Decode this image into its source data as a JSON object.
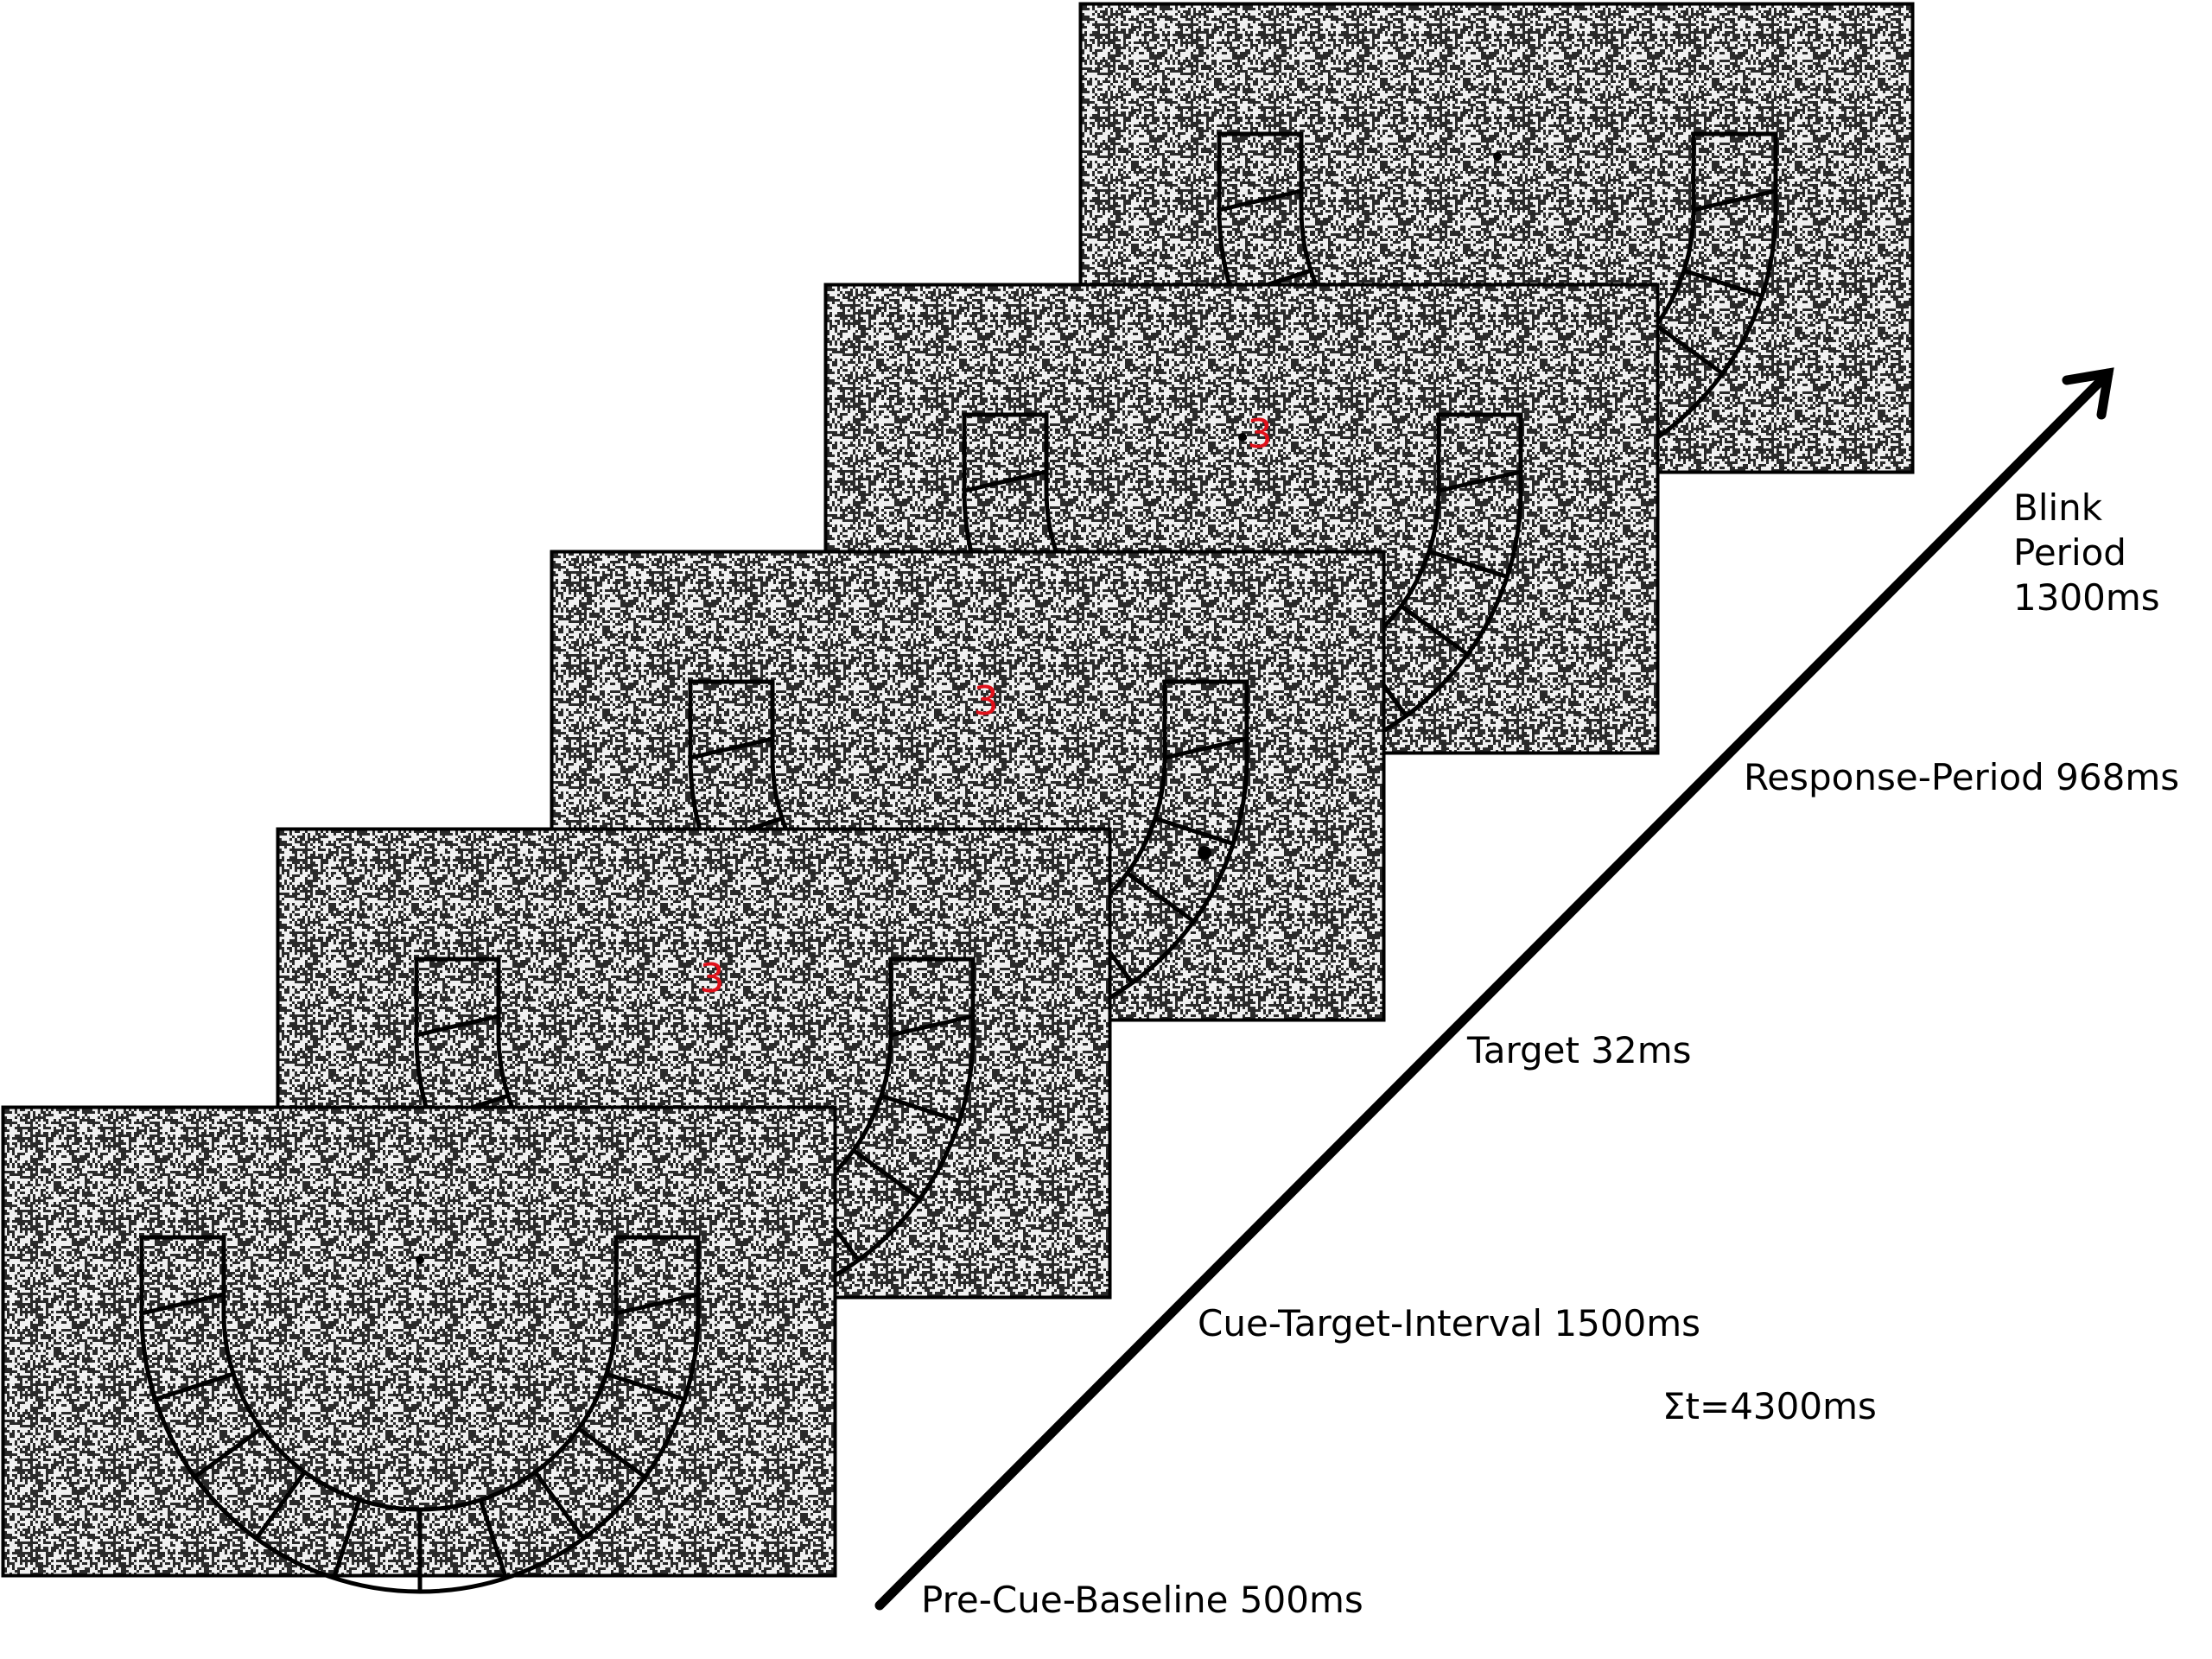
{
  "colors": {
    "background": "#ffffff",
    "frame_border": "#000000",
    "noise_dark": "#2a2a2a",
    "noise_light": "#f0f0f0",
    "cue": "#e0101a",
    "arrow": "#000000"
  },
  "frames": [
    {
      "id": "pre-cue-baseline",
      "cue_text": "",
      "fixation": "center",
      "segments": "full"
    },
    {
      "id": "cue-target-interval",
      "cue_text": "3",
      "fixation": "none",
      "segments": "partial"
    },
    {
      "id": "target",
      "cue_text": "3",
      "fixation": "target",
      "segments": "partial"
    },
    {
      "id": "response-period",
      "cue_text": "3",
      "fixation": "center",
      "segments": "partial"
    },
    {
      "id": "blink-period",
      "cue_text": "",
      "fixation": "center",
      "segments": "partial"
    }
  ],
  "labels": {
    "pre_cue_baseline": "Pre-Cue-Baseline 500ms",
    "cue_target_interval": "Cue-Target-Interval 1500ms",
    "total_time": "Σt=4300ms",
    "target": "Target 32ms",
    "response_period": "Response-Period 968ms",
    "blink_line1": "Blink",
    "blink_line2": "Period",
    "blink_line3": "1300ms"
  },
  "icons": {
    "time_arrow": "diagonal-arrow-icon",
    "fixation": "dot-icon"
  }
}
